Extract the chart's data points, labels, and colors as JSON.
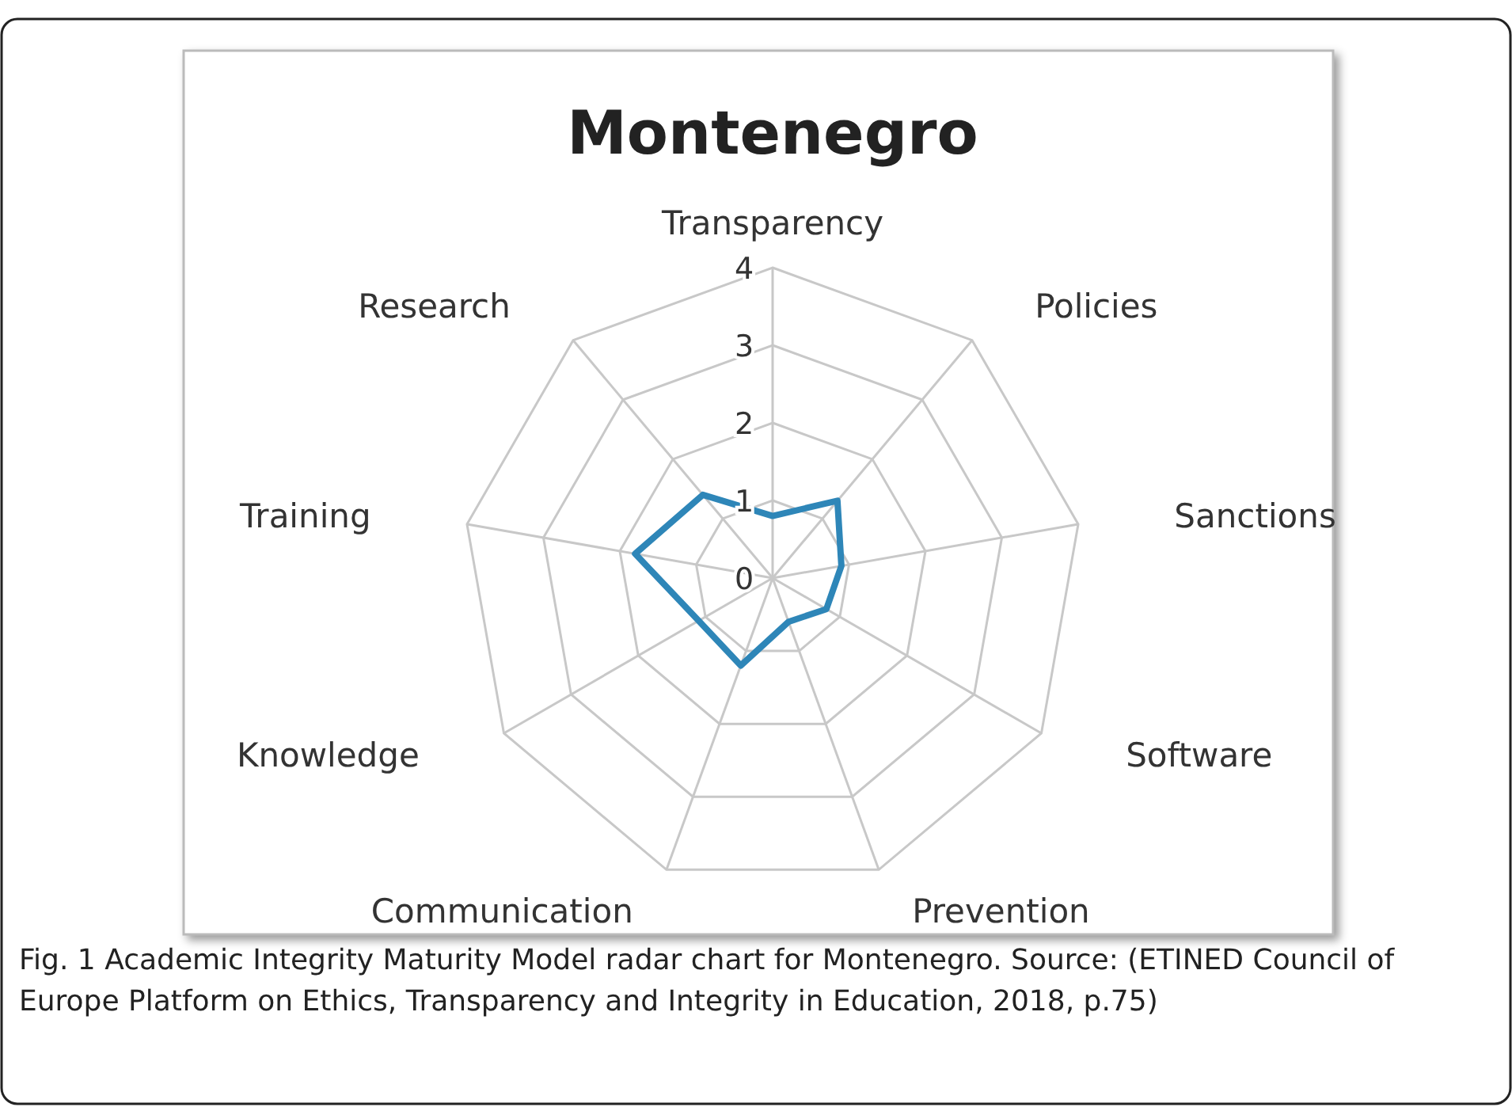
{
  "chart_data": {
    "type": "radar",
    "title": "Montenegro",
    "categories": [
      "Transparency",
      "Policies",
      "Sanctions",
      "Software",
      "Prevention",
      "Communication",
      "Knowledge",
      "Training",
      "Research"
    ],
    "series": [
      {
        "color": "#2e86b8",
        "values": [
          0.8,
          1.3,
          0.9,
          0.8,
          0.6,
          1.2,
          1.1,
          1.8,
          1.4
        ]
      }
    ],
    "ylim": [
      0,
      4
    ],
    "yticks": [
      0,
      1,
      2,
      3,
      4
    ],
    "grid": true,
    "annotations": [
      "Fig. 1 Academic Integrity Maturity Model radar chart for Montenegro. Source: (ETINED Council of Europe Platform on Ethics, Transparency and Integrity in Education, 2018, p.75)"
    ]
  }
}
